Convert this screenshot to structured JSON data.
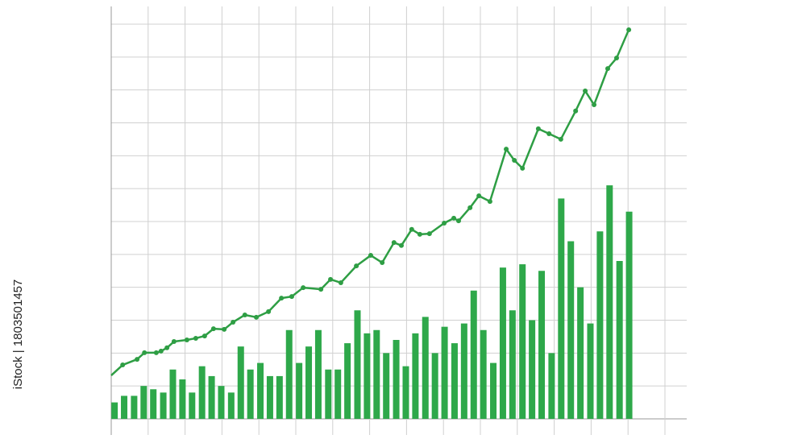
{
  "chart_data": {
    "type": "bar-line",
    "credit": "iStock | 1803501457",
    "xlim": [
      0,
      15
    ],
    "ylim": [
      0,
      12
    ],
    "xticks": [
      0,
      1,
      2,
      3,
      4,
      5,
      6,
      7,
      8,
      9,
      10,
      11,
      12,
      13,
      14,
      15
    ],
    "yticks": [
      0,
      1,
      2,
      3,
      4,
      5,
      6,
      7,
      8,
      9,
      10,
      11,
      12
    ],
    "grid": true,
    "series": [
      {
        "type": "bar",
        "color": "#2ea84a",
        "x": [
          0.09,
          0.35,
          0.62,
          0.88,
          1.14,
          1.41,
          1.67,
          1.93,
          2.19,
          2.46,
          2.72,
          2.98,
          3.25,
          3.51,
          3.77,
          4.04,
          4.3,
          4.56,
          4.82,
          5.09,
          5.35,
          5.61,
          5.88,
          6.14,
          6.4,
          6.67,
          6.93,
          7.19,
          7.45,
          7.72,
          7.98,
          8.24,
          8.51,
          8.77,
          9.03,
          9.3,
          9.56,
          9.82,
          10.08,
          10.35,
          10.61,
          10.87,
          11.14,
          11.4,
          11.66,
          11.93,
          12.19,
          12.45,
          12.71,
          12.98,
          13.24,
          13.5,
          13.77,
          14.03
        ],
        "values": [
          0.5,
          0.7,
          0.7,
          1.0,
          0.9,
          0.8,
          1.5,
          1.2,
          0.8,
          1.6,
          1.3,
          1.0,
          0.8,
          2.2,
          1.5,
          1.7,
          1.3,
          1.3,
          2.7,
          1.7,
          2.2,
          2.7,
          1.5,
          1.5,
          2.3,
          3.3,
          2.6,
          2.7,
          2.0,
          2.4,
          1.6,
          2.6,
          3.1,
          2.0,
          2.8,
          2.3,
          2.9,
          3.9,
          2.7,
          1.7,
          4.6,
          3.3,
          4.7,
          3.0,
          4.5,
          2.0,
          6.7,
          5.4,
          4.0,
          2.9,
          5.7,
          7.1,
          4.8,
          6.3
        ]
      },
      {
        "type": "line",
        "color": "#2e9e44",
        "x": [
          0,
          0.31,
          0.7,
          0.9,
          1.22,
          1.35,
          1.51,
          1.7,
          2.05,
          2.29,
          2.53,
          2.77,
          3.06,
          3.3,
          3.62,
          3.93,
          4.26,
          4.61,
          4.89,
          5.2,
          5.68,
          5.94,
          6.22,
          6.64,
          7.03,
          7.34,
          7.66,
          7.86,
          8.14,
          8.36,
          8.62,
          9.02,
          9.28,
          9.41,
          9.72,
          9.96,
          10.26,
          10.7,
          10.92,
          11.14,
          11.57,
          11.86,
          12.18,
          12.58,
          12.84,
          13.08,
          13.45,
          13.69,
          14.02
        ],
        "values": [
          1.32,
          1.64,
          1.81,
          2.01,
          2.01,
          2.06,
          2.16,
          2.35,
          2.4,
          2.45,
          2.52,
          2.74,
          2.72,
          2.94,
          3.16,
          3.09,
          3.26,
          3.67,
          3.72,
          3.99,
          3.94,
          4.24,
          4.14,
          4.65,
          4.97,
          4.75,
          5.36,
          5.27,
          5.76,
          5.61,
          5.63,
          5.95,
          6.1,
          6.02,
          6.42,
          6.78,
          6.61,
          8.2,
          7.86,
          7.62,
          8.82,
          8.67,
          8.5,
          9.36,
          9.97,
          9.55,
          10.65,
          10.97,
          11.83
        ]
      }
    ]
  }
}
